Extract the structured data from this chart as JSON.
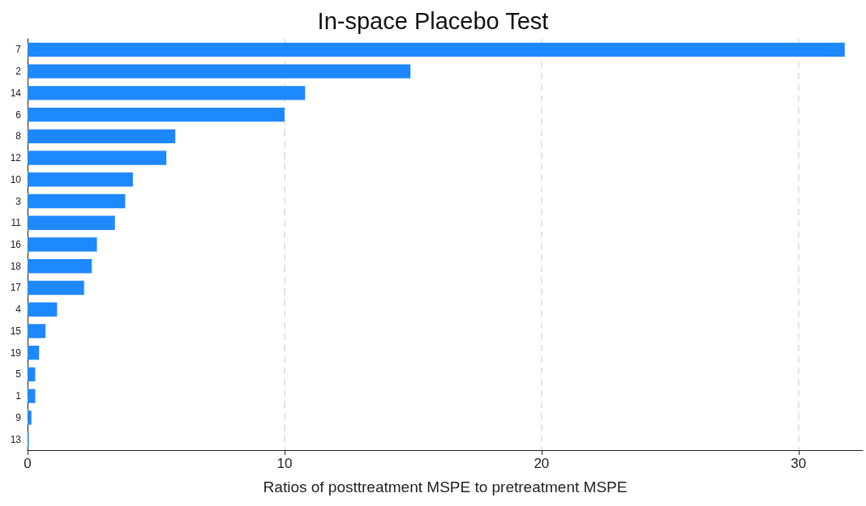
{
  "chart_data": {
    "type": "bar",
    "orientation": "horizontal",
    "title": "In-space Placebo Test",
    "xlabel": "Ratios of posttreatment MSPE to pretreatment MSPE",
    "categories": [
      "7",
      "2",
      "14",
      "6",
      "8",
      "12",
      "10",
      "3",
      "11",
      "16",
      "18",
      "17",
      "4",
      "15",
      "19",
      "5",
      "1",
      "9",
      "13"
    ],
    "values": [
      31.8,
      14.9,
      10.8,
      10.0,
      5.75,
      5.4,
      4.1,
      3.8,
      3.4,
      2.7,
      2.5,
      2.2,
      1.15,
      0.7,
      0.45,
      0.3,
      0.3,
      0.15,
      0.05
    ],
    "color": "#1e88ff",
    "xlim": [
      0,
      32.5
    ],
    "xticks": [
      0,
      10,
      20,
      30
    ],
    "grid": "x"
  }
}
